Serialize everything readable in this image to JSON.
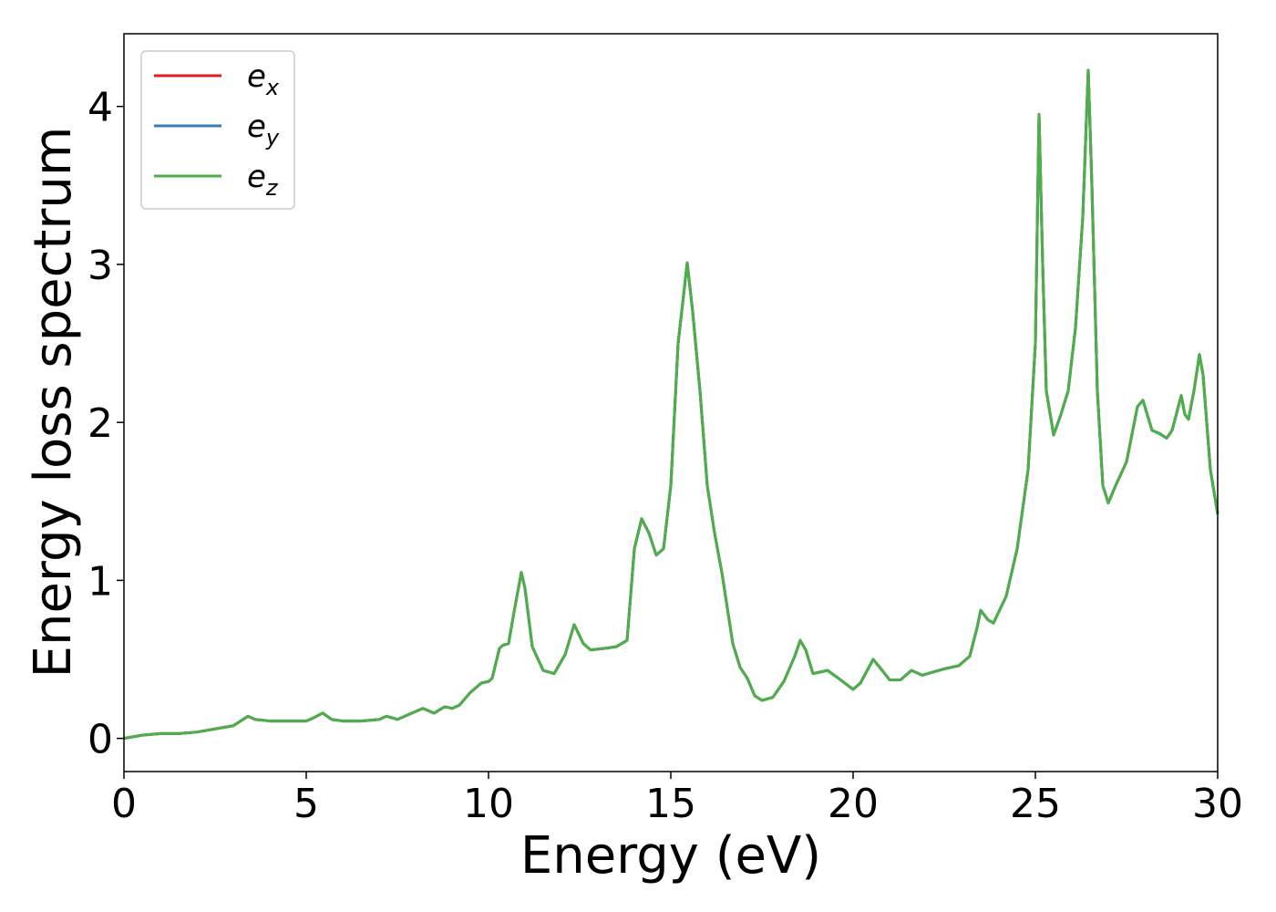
{
  "chart_data": {
    "type": "line",
    "xlabel": "Energy (eV)",
    "ylabel": "Energy loss spectrum",
    "xlim": [
      0,
      30
    ],
    "ylim": [
      -0.21,
      4.46
    ],
    "xticks": [
      0,
      5,
      10,
      15,
      20,
      25,
      30
    ],
    "yticks": [
      0,
      1,
      2,
      3,
      4
    ],
    "legend": "upper left",
    "x": [
      0,
      0.5,
      1,
      1.5,
      2,
      2.5,
      3,
      3.2,
      3.4,
      3.6,
      4,
      4.5,
      5,
      5.2,
      5.45,
      5.7,
      6,
      6.5,
      7,
      7.2,
      7.5,
      8,
      8.2,
      8.5,
      8.8,
      9,
      9.2,
      9.5,
      9.8,
      10,
      10.1,
      10.3,
      10.4,
      10.55,
      10.7,
      10.9,
      11,
      11.2,
      11.5,
      11.8,
      12.1,
      12.35,
      12.6,
      12.8,
      13.2,
      13.5,
      13.8,
      14,
      14.2,
      14.4,
      14.6,
      14.8,
      15,
      15.2,
      15.45,
      15.6,
      15.8,
      16,
      16.2,
      16.4,
      16.7,
      16.9,
      17.1,
      17.3,
      17.5,
      17.8,
      18.1,
      18.4,
      18.55,
      18.7,
      18.9,
      19.3,
      19.6,
      20,
      20.2,
      20.55,
      20.8,
      21,
      21.3,
      21.6,
      21.9,
      22.2,
      22.5,
      22.9,
      23.2,
      23.4,
      23.5,
      23.7,
      23.85,
      24.2,
      24.5,
      24.8,
      25,
      25.1,
      25.2,
      25.3,
      25.5,
      25.7,
      25.9,
      26.1,
      26.3,
      26.45,
      26.55,
      26.7,
      26.85,
      27,
      27.2,
      27.5,
      27.8,
      27.95,
      28.2,
      28.4,
      28.6,
      28.75,
      29,
      29.1,
      29.2,
      29.35,
      29.5,
      29.6,
      29.8,
      30
    ],
    "series": [
      {
        "name": "ex",
        "color": "#e41a1c",
        "values": [
          0,
          0.02,
          0.03,
          0.03,
          0.04,
          0.06,
          0.08,
          0.11,
          0.14,
          0.12,
          0.11,
          0.11,
          0.11,
          0.13,
          0.16,
          0.12,
          0.11,
          0.11,
          0.12,
          0.14,
          0.12,
          0.17,
          0.19,
          0.16,
          0.2,
          0.19,
          0.21,
          0.29,
          0.35,
          0.36,
          0.38,
          0.57,
          0.59,
          0.6,
          0.8,
          1.05,
          0.95,
          0.58,
          0.43,
          0.41,
          0.53,
          0.72,
          0.6,
          0.56,
          0.57,
          0.58,
          0.62,
          1.2,
          1.39,
          1.3,
          1.16,
          1.2,
          1.6,
          2.5,
          3.01,
          2.7,
          2.2,
          1.6,
          1.3,
          1.05,
          0.6,
          0.45,
          0.38,
          0.27,
          0.24,
          0.26,
          0.36,
          0.52,
          0.62,
          0.56,
          0.41,
          0.43,
          0.38,
          0.31,
          0.35,
          0.5,
          0.43,
          0.37,
          0.37,
          0.43,
          0.4,
          0.42,
          0.44,
          0.46,
          0.52,
          0.7,
          0.81,
          0.75,
          0.73,
          0.9,
          1.2,
          1.7,
          2.5,
          3.95,
          3.0,
          2.2,
          1.92,
          2.05,
          2.2,
          2.6,
          3.3,
          4.23,
          3.5,
          2.2,
          1.6,
          1.49,
          1.6,
          1.75,
          2.1,
          2.14,
          1.95,
          1.93,
          1.9,
          1.95,
          2.17,
          2.05,
          2.02,
          2.2,
          2.43,
          2.3,
          1.7,
          1.42
        ]
      },
      {
        "name": "ey",
        "color": "#377eb8",
        "values": [
          0,
          0.02,
          0.03,
          0.03,
          0.04,
          0.06,
          0.08,
          0.11,
          0.14,
          0.12,
          0.11,
          0.11,
          0.11,
          0.13,
          0.16,
          0.12,
          0.11,
          0.11,
          0.12,
          0.14,
          0.12,
          0.17,
          0.19,
          0.16,
          0.2,
          0.19,
          0.21,
          0.29,
          0.35,
          0.36,
          0.38,
          0.57,
          0.59,
          0.6,
          0.8,
          1.05,
          0.95,
          0.58,
          0.43,
          0.41,
          0.53,
          0.72,
          0.6,
          0.56,
          0.57,
          0.58,
          0.62,
          1.2,
          1.39,
          1.3,
          1.16,
          1.2,
          1.6,
          2.5,
          3.01,
          2.7,
          2.2,
          1.6,
          1.3,
          1.05,
          0.6,
          0.45,
          0.38,
          0.27,
          0.24,
          0.26,
          0.36,
          0.52,
          0.62,
          0.56,
          0.41,
          0.43,
          0.38,
          0.31,
          0.35,
          0.5,
          0.43,
          0.37,
          0.37,
          0.43,
          0.4,
          0.42,
          0.44,
          0.46,
          0.52,
          0.7,
          0.81,
          0.75,
          0.73,
          0.9,
          1.2,
          1.7,
          2.5,
          3.95,
          3.0,
          2.2,
          1.92,
          2.05,
          2.2,
          2.6,
          3.3,
          4.23,
          3.5,
          2.2,
          1.6,
          1.49,
          1.6,
          1.75,
          2.1,
          2.14,
          1.95,
          1.93,
          1.9,
          1.95,
          2.17,
          2.05,
          2.02,
          2.2,
          2.43,
          2.3,
          1.7,
          1.42
        ]
      },
      {
        "name": "ez",
        "color": "#4daf4a",
        "values": [
          0,
          0.02,
          0.03,
          0.03,
          0.04,
          0.06,
          0.08,
          0.11,
          0.14,
          0.12,
          0.11,
          0.11,
          0.11,
          0.13,
          0.16,
          0.12,
          0.11,
          0.11,
          0.12,
          0.14,
          0.12,
          0.17,
          0.19,
          0.16,
          0.2,
          0.19,
          0.21,
          0.29,
          0.35,
          0.36,
          0.38,
          0.57,
          0.59,
          0.6,
          0.8,
          1.05,
          0.95,
          0.58,
          0.43,
          0.41,
          0.53,
          0.72,
          0.6,
          0.56,
          0.57,
          0.58,
          0.62,
          1.2,
          1.39,
          1.3,
          1.16,
          1.2,
          1.6,
          2.5,
          3.01,
          2.7,
          2.2,
          1.6,
          1.3,
          1.05,
          0.6,
          0.45,
          0.38,
          0.27,
          0.24,
          0.26,
          0.36,
          0.52,
          0.62,
          0.56,
          0.41,
          0.43,
          0.38,
          0.31,
          0.35,
          0.5,
          0.43,
          0.37,
          0.37,
          0.43,
          0.4,
          0.42,
          0.44,
          0.46,
          0.52,
          0.7,
          0.81,
          0.75,
          0.73,
          0.9,
          1.2,
          1.7,
          2.5,
          3.95,
          3.0,
          2.2,
          1.92,
          2.05,
          2.2,
          2.6,
          3.3,
          4.23,
          3.5,
          2.2,
          1.6,
          1.49,
          1.6,
          1.75,
          2.1,
          2.14,
          1.95,
          1.93,
          1.9,
          1.95,
          2.17,
          2.05,
          2.02,
          2.2,
          2.43,
          2.3,
          1.7,
          1.42
        ]
      }
    ]
  }
}
